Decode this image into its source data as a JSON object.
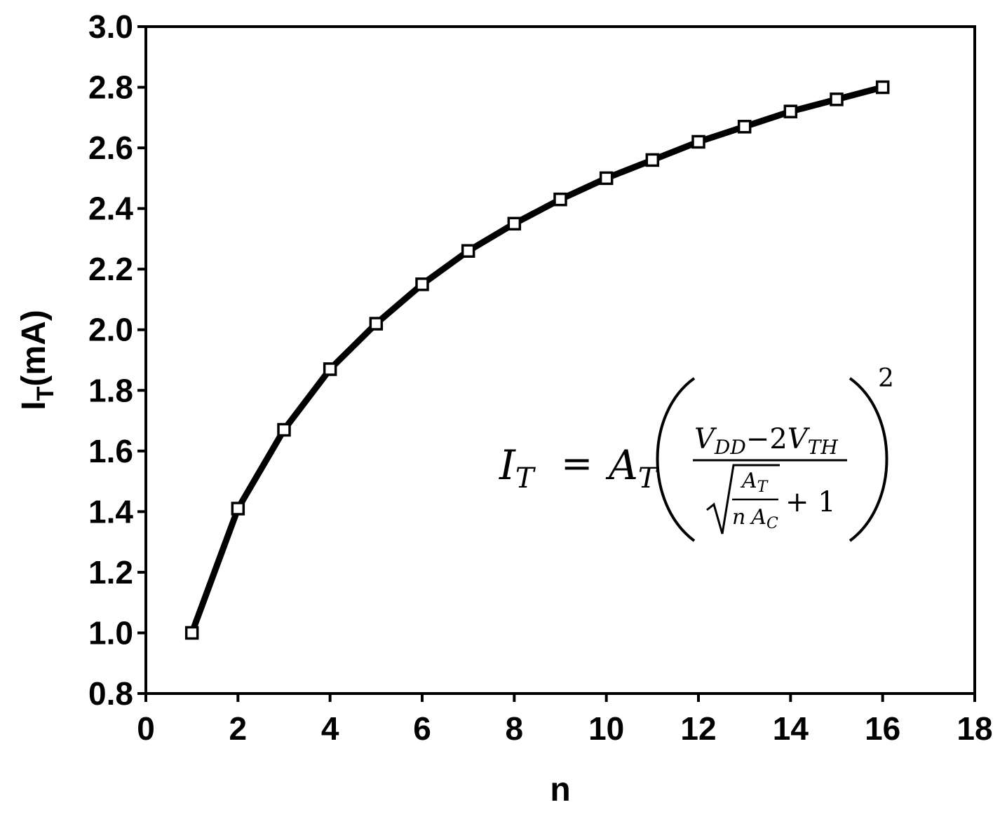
{
  "chart_data": {
    "type": "line",
    "xlabel": "n",
    "ylabel": {
      "main": "I",
      "sub": "T",
      "rest": "(mA)"
    },
    "xlim": [
      0,
      18
    ],
    "ylim": [
      0.8,
      3.0
    ],
    "xticks": [
      "0",
      "2",
      "4",
      "6",
      "8",
      "10",
      "12",
      "14",
      "16",
      "18"
    ],
    "yticks": [
      "0.8",
      "1.0",
      "1.2",
      "1.4",
      "1.6",
      "1.8",
      "2.0",
      "2.2",
      "2.4",
      "2.6",
      "2.8",
      "3.0"
    ],
    "grid": false,
    "marker": "open-square",
    "line_color": "#000000",
    "series": [
      {
        "x": [
          1,
          2,
          3,
          4,
          5,
          6,
          7,
          8,
          9,
          10,
          11,
          12,
          13,
          14,
          15,
          16
        ],
        "y": [
          1.0,
          1.41,
          1.67,
          1.87,
          2.02,
          2.15,
          2.26,
          2.35,
          2.43,
          2.5,
          2.56,
          2.62,
          2.67,
          2.72,
          2.76,
          2.8
        ]
      }
    ],
    "annotation": {
      "lhs_main": "I",
      "lhs_sub": "T",
      "equals": "=",
      "coef_main": "A",
      "coef_sub": "T",
      "num_v1": "V",
      "num_v1_sub": "DD",
      "num_mid": "−2",
      "num_v2": "V",
      "num_v2_sub": "TH",
      "den_frac_top": "A",
      "den_frac_top_sub": "T",
      "den_frac_bot_n": "n",
      "den_frac_bot_a": "A",
      "den_frac_bot_sub": "C",
      "den_plus": "+ 1",
      "exponent": "2"
    }
  }
}
